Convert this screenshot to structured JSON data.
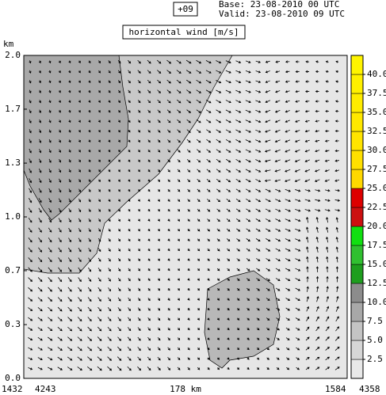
{
  "chart_data": {
    "type": "vector-field",
    "tag": "+09",
    "base": "Base: 23-08-2010  00 UTC",
    "valid": "Valid: 23-08-2010  09 UTC",
    "title": "horizontal wind [m/s]",
    "y_unit": "km",
    "ylim": [
      0,
      2
    ],
    "yticks": [
      {
        "value": 0,
        "label": "0.0"
      },
      {
        "value": 0.333,
        "label": "0.3"
      },
      {
        "value": 0.667,
        "label": "0.7"
      },
      {
        "value": 1,
        "label": "1.0"
      },
      {
        "value": 1.333,
        "label": "1.3"
      },
      {
        "value": 1.667,
        "label": "1.7"
      },
      {
        "value": 2,
        "label": "2.0"
      }
    ],
    "x_labels": [
      "1432",
      "4243",
      "178 km",
      "1584",
      "4358"
    ],
    "colorbar": {
      "levels": [
        {
          "value": 2.5,
          "label": "2.5"
        },
        {
          "value": 5,
          "label": "5.0"
        },
        {
          "value": 7.5,
          "label": "7.5"
        },
        {
          "value": 10,
          "label": "10.0"
        },
        {
          "value": 12.5,
          "label": "12.5"
        },
        {
          "value": 15,
          "label": "15.0"
        },
        {
          "value": 17.5,
          "label": "17.5"
        },
        {
          "value": 20,
          "label": "20.0"
        },
        {
          "value": 22.5,
          "label": "22.5"
        },
        {
          "value": 25,
          "label": "25.0"
        },
        {
          "value": 27.5,
          "label": "27.5"
        },
        {
          "value": 30,
          "label": "30.0"
        },
        {
          "value": 32.5,
          "label": "32.5"
        },
        {
          "value": 35,
          "label": "35.0"
        },
        {
          "value": 37.5,
          "label": "37.5"
        },
        {
          "value": 40,
          "label": "40.0"
        }
      ],
      "colors": [
        "#e8e8e8",
        "#d6d6d6",
        "#c4c4c4",
        "#a8a8a8",
        "#8c8c8c",
        "#1e9e1e",
        "#30c030",
        "#10e010",
        "#cc1010",
        "#dd0000",
        "#ffd800",
        "#ffe000",
        "#ffe400",
        "#ffe800",
        "#ffec00",
        "#fff000",
        "#fff400"
      ]
    }
  }
}
